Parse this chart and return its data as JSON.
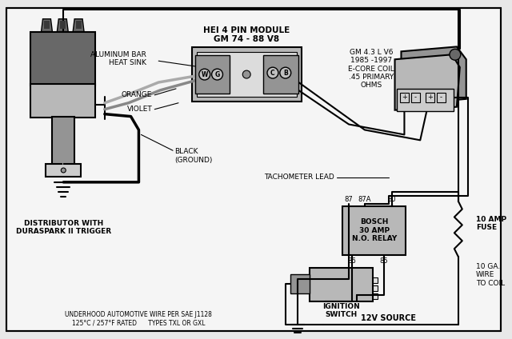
{
  "bg": "#e8e8e8",
  "black": "#000000",
  "dark_gray": "#686868",
  "mid_gray": "#949494",
  "light_gray": "#b8b8b8",
  "lighter_gray": "#cccccc",
  "white_fill": "#e0e0e0",
  "texts": {
    "hei_module": "HEI 4 PIN MODULE\nGM 74 - 88 V8",
    "alum_bar": "ALUMINUM BAR\nHEAT SINK",
    "orange_lbl": "ORANGE",
    "violet_lbl": "VIOLET",
    "black_gnd": "BLACK\n(GROUND)",
    "distrib": "DISTRIBUTOR WITH\nDURASPARK II TRIGGER",
    "gm_coil": "GM 4.3 L V6\n1985 -1997\nE-CORE COIL\n.45 PRIMARY\nOHMS",
    "tach": "TACHOMETER LEAD",
    "bosch": "BOSCH\n30 AMP\nN.O. RELAY",
    "ign": "IGNITION\nSWITCH",
    "v12": "12V SOURCE",
    "fuse": "10 AMP\nFUSE",
    "wire10": "10 GA.\nWIRE\nTO COIL",
    "underhood": "UNDERHOOD AUTOMOTIVE WIRE PER SAE J1128\n125°C / 257°F RATED      TYPES TXL OR GXL"
  }
}
